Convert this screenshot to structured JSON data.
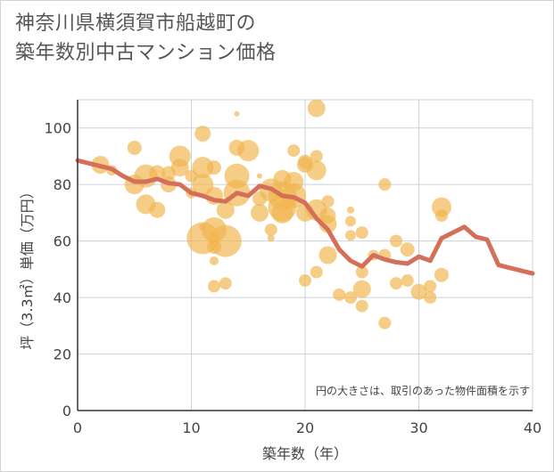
{
  "chart_data": {
    "type": "scatter",
    "title_lines": [
      "神奈川県横須賀市船越町の",
      "築年数別中古マンション価格"
    ],
    "xlabel": "築年数（年）",
    "ylabel": "坪（3.3㎡）単価（万円）",
    "xlim": [
      0,
      40
    ],
    "ylim": [
      0,
      110
    ],
    "x_ticks": [
      0,
      10,
      20,
      30,
      40
    ],
    "y_ticks": [
      0,
      20,
      40,
      60,
      80,
      100
    ],
    "grid": true,
    "note": "円の大きさは、取引のあった物件面積を示す",
    "bubble_color": "#f0b54e",
    "line_color": "#d4705a",
    "bubbles": [
      {
        "x": 2,
        "y": 87,
        "s": 10
      },
      {
        "x": 3,
        "y": 85,
        "s": 6
      },
      {
        "x": 5,
        "y": 93,
        "s": 8
      },
      {
        "x": 5,
        "y": 80,
        "s": 11
      },
      {
        "x": 6,
        "y": 83,
        "s": 13
      },
      {
        "x": 6,
        "y": 73,
        "s": 11
      },
      {
        "x": 7,
        "y": 71,
        "s": 9
      },
      {
        "x": 7,
        "y": 84,
        "s": 9
      },
      {
        "x": 8,
        "y": 80,
        "s": 9
      },
      {
        "x": 8,
        "y": 84,
        "s": 8
      },
      {
        "x": 9,
        "y": 90,
        "s": 12
      },
      {
        "x": 9,
        "y": 86,
        "s": 10
      },
      {
        "x": 10,
        "y": 83,
        "s": 7
      },
      {
        "x": 10,
        "y": 77,
        "s": 6
      },
      {
        "x": 11,
        "y": 98,
        "s": 9
      },
      {
        "x": 11,
        "y": 86,
        "s": 12
      },
      {
        "x": 11,
        "y": 80,
        "s": 12
      },
      {
        "x": 11,
        "y": 65,
        "s": 4
      },
      {
        "x": 11,
        "y": 61,
        "s": 18
      },
      {
        "x": 12,
        "y": 86,
        "s": 8
      },
      {
        "x": 12,
        "y": 76,
        "s": 10
      },
      {
        "x": 12,
        "y": 64,
        "s": 14
      },
      {
        "x": 12,
        "y": 58,
        "s": 8
      },
      {
        "x": 12,
        "y": 53,
        "s": 5
      },
      {
        "x": 12,
        "y": 44,
        "s": 7
      },
      {
        "x": 13,
        "y": 60,
        "s": 18
      },
      {
        "x": 13,
        "y": 71,
        "s": 10
      },
      {
        "x": 13,
        "y": 45,
        "s": 7
      },
      {
        "x": 14,
        "y": 93,
        "s": 9
      },
      {
        "x": 14,
        "y": 83,
        "s": 14
      },
      {
        "x": 14,
        "y": 77,
        "s": 15
      },
      {
        "x": 14,
        "y": 105,
        "s": 3
      },
      {
        "x": 15,
        "y": 92,
        "s": 12
      },
      {
        "x": 16,
        "y": 70,
        "s": 10
      },
      {
        "x": 16,
        "y": 75,
        "s": 8
      },
      {
        "x": 16,
        "y": 83,
        "s": 3
      },
      {
        "x": 17,
        "y": 64,
        "s": 7
      },
      {
        "x": 17,
        "y": 61,
        "s": 4
      },
      {
        "x": 17,
        "y": 78,
        "s": 13
      },
      {
        "x": 18,
        "y": 82,
        "s": 10
      },
      {
        "x": 18,
        "y": 72,
        "s": 16
      },
      {
        "x": 18,
        "y": 76,
        "s": 16
      },
      {
        "x": 18,
        "y": 70,
        "s": 12
      },
      {
        "x": 19,
        "y": 92,
        "s": 7
      },
      {
        "x": 19,
        "y": 81,
        "s": 11
      },
      {
        "x": 19,
        "y": 76,
        "s": 14
      },
      {
        "x": 20,
        "y": 88,
        "s": 8
      },
      {
        "x": 20,
        "y": 87,
        "s": 9
      },
      {
        "x": 20,
        "y": 70,
        "s": 10
      },
      {
        "x": 20,
        "y": 46,
        "s": 7
      },
      {
        "x": 21,
        "y": 107,
        "s": 10
      },
      {
        "x": 21,
        "y": 90,
        "s": 7
      },
      {
        "x": 21,
        "y": 85,
        "s": 11
      },
      {
        "x": 21,
        "y": 71,
        "s": 12
      },
      {
        "x": 21,
        "y": 49,
        "s": 7
      },
      {
        "x": 22,
        "y": 74,
        "s": 7
      },
      {
        "x": 22,
        "y": 69,
        "s": 9
      },
      {
        "x": 22,
        "y": 66,
        "s": 10
      },
      {
        "x": 22,
        "y": 55,
        "s": 10
      },
      {
        "x": 23,
        "y": 41,
        "s": 7
      },
      {
        "x": 24,
        "y": 71,
        "s": 4
      },
      {
        "x": 24,
        "y": 67,
        "s": 6
      },
      {
        "x": 24,
        "y": 62,
        "s": 6
      },
      {
        "x": 24,
        "y": 40,
        "s": 7
      },
      {
        "x": 25,
        "y": 63,
        "s": 7
      },
      {
        "x": 25,
        "y": 49,
        "s": 7
      },
      {
        "x": 25,
        "y": 43,
        "s": 10
      },
      {
        "x": 25,
        "y": 37,
        "s": 7
      },
      {
        "x": 26,
        "y": 55,
        "s": 6
      },
      {
        "x": 27,
        "y": 80,
        "s": 7
      },
      {
        "x": 27,
        "y": 55,
        "s": 7
      },
      {
        "x": 27,
        "y": 31,
        "s": 7
      },
      {
        "x": 28,
        "y": 60,
        "s": 7
      },
      {
        "x": 28,
        "y": 45,
        "s": 7
      },
      {
        "x": 29,
        "y": 57,
        "s": 8
      },
      {
        "x": 29,
        "y": 46,
        "s": 7
      },
      {
        "x": 30,
        "y": 42,
        "s": 9
      },
      {
        "x": 31,
        "y": 44,
        "s": 7
      },
      {
        "x": 31,
        "y": 40,
        "s": 7
      },
      {
        "x": 32,
        "y": 72,
        "s": 11
      },
      {
        "x": 32,
        "y": 69,
        "s": 7
      },
      {
        "x": 32,
        "y": 48,
        "s": 8
      }
    ],
    "series": [
      {
        "x": [
          0,
          1,
          2,
          3,
          4,
          5,
          6,
          7,
          8,
          9,
          10,
          11,
          12,
          13,
          14,
          15,
          16,
          17,
          18,
          19,
          20,
          21,
          22,
          23,
          24,
          25,
          26,
          27,
          28,
          29,
          30,
          31,
          32,
          33,
          34,
          35,
          36,
          37,
          38,
          39,
          40
        ],
        "values": [
          88.5,
          87.5,
          86.5,
          85.5,
          83,
          81,
          81,
          82,
          80.5,
          80,
          77,
          76,
          74.5,
          74,
          77,
          76,
          79.5,
          78.5,
          76,
          75.5,
          73.5,
          68,
          64,
          57,
          53,
          51,
          55,
          53.5,
          52.5,
          52,
          54.5,
          53,
          61,
          63,
          65,
          61.5,
          60.5,
          51.5,
          50.5,
          49.5,
          48.5
        ]
      }
    ]
  }
}
